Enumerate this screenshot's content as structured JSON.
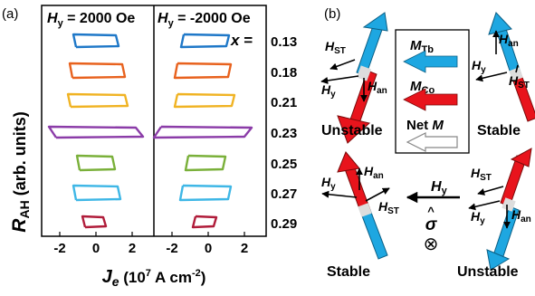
{
  "panel_a": {
    "label": "(a)",
    "left_header": {
      "sym": "H",
      "sub": "y",
      "value": " = 2000 Oe"
    },
    "right_header": {
      "sym": "H",
      "sub": "y",
      "value": " = -2000 Oe"
    },
    "x_var": "x",
    "x_eq": " =",
    "ylabel": {
      "sym": "R",
      "sub": "AH",
      "unit": "(arb. units)"
    },
    "xlabel": {
      "sym": "J",
      "sub": "e",
      "unit_pre": "(10",
      "unit_exp": "7",
      "unit_mid": " A cm",
      "unit_exp2": "-2",
      "unit_post": ")"
    },
    "xticks": [
      "-2",
      "0",
      "2"
    ],
    "compositions": [
      "0.13",
      "0.18",
      "0.21",
      "0.23",
      "0.25",
      "0.27",
      "0.29"
    ],
    "colors": [
      "#1f78c8",
      "#e8621e",
      "#f0b323",
      "#8b3ca8",
      "#7ab03a",
      "#3fb7e6",
      "#b01c3a"
    ]
  },
  "panel_b": {
    "label": "(b)",
    "states": {
      "top_left": "Unstable",
      "top_right": "Stable",
      "bottom_left": "Stable",
      "bottom_right": "Unstable"
    },
    "field_labels": {
      "HST": {
        "sym": "H",
        "sub": "ST"
      },
      "Han": {
        "sym": "H",
        "sub": "an"
      },
      "Hy": {
        "sym": "H",
        "sub": "y"
      }
    },
    "legend": {
      "mtb": {
        "sym": "M",
        "sub": "Tb"
      },
      "mco": {
        "sym": "M",
        "sub": "Co"
      },
      "net": {
        "pre": "Net ",
        "sym": "M"
      }
    },
    "sigma_symbol": "σ",
    "sigma_hat": "^",
    "otimes": "⊗",
    "colors": {
      "red": "#e8141c",
      "blue": "#1ea7e1",
      "gray": "#bbbbbb"
    }
  }
}
